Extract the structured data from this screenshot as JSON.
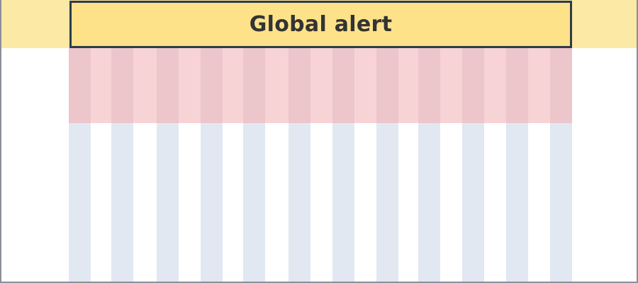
{
  "alert": {
    "label": "Global alert"
  },
  "colors": {
    "alert_band": "#fde9a6",
    "alert_box": "#fde28a",
    "alert_border": "#2f3a4a",
    "grid_column": "#e1e8f2",
    "region": "#f7d3d5",
    "region_column": "#ecc6cb"
  },
  "grid": {
    "column_count": 12
  }
}
